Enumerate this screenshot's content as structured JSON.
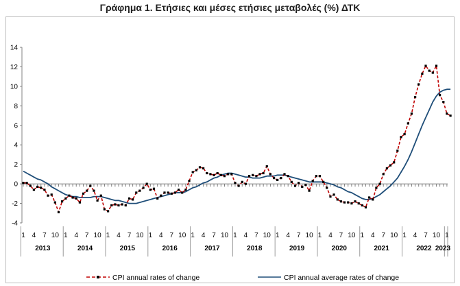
{
  "title": "Γράφημα 1. Ετήσιες και μέσες ετήσιες μεταβολές (%) ΔΤΚ",
  "colors": {
    "annual": "#c00000",
    "average": "#1f4e79",
    "axis": "#808080"
  },
  "chart_data": {
    "type": "line",
    "ylim": [
      -4,
      14
    ],
    "yticks": [
      -4,
      -2,
      0,
      2,
      4,
      6,
      8,
      10,
      12,
      14
    ],
    "grid": false,
    "legend_position": "bottom",
    "month_tick_labels": [
      "1",
      "4",
      "7",
      "10"
    ],
    "final_tick_label": "1",
    "years": [
      "2013",
      "2014",
      "2015",
      "2016",
      "2017",
      "2018",
      "2019",
      "2020",
      "2021",
      "2022",
      "2023"
    ],
    "start": "2013-01",
    "series": [
      {
        "name": "CPI annual rates of change",
        "style": "dashed-markers",
        "values": [
          0.1,
          0.1,
          -0.2,
          -0.6,
          -0.3,
          -0.4,
          -0.6,
          -1.2,
          -1.1,
          -1.9,
          -2.9,
          -1.8,
          -1.5,
          -1.2,
          -1.4,
          -1.5,
          -1.9,
          -1.0,
          -0.7,
          -0.2,
          -0.7,
          -1.7,
          -1.2,
          -2.6,
          -2.8,
          -2.2,
          -2.1,
          -2.2,
          -2.1,
          -2.2,
          -1.5,
          -1.6,
          -0.9,
          -0.7,
          -0.4,
          0.0,
          -0.6,
          -0.5,
          -1.5,
          -1.2,
          -0.9,
          -0.9,
          -1.0,
          -0.9,
          -0.6,
          -0.9,
          -0.6,
          0.3,
          1.2,
          1.4,
          1.7,
          1.6,
          1.1,
          1.0,
          0.9,
          1.1,
          0.9,
          0.8,
          1.0,
          1.0,
          0.1,
          -0.2,
          0.2,
          0.0,
          0.8,
          0.9,
          0.8,
          1.0,
          1.1,
          1.8,
          1.0,
          0.6,
          0.4,
          0.6,
          1.0,
          0.8,
          0.2,
          -0.2,
          0.1,
          -0.3,
          -0.1,
          -0.7,
          0.3,
          0.8,
          0.8,
          0.2,
          -0.4,
          -1.3,
          -1.1,
          -1.6,
          -1.8,
          -1.9,
          -1.9,
          -2.0,
          -1.8,
          -2.0,
          -2.2,
          -2.4,
          -1.4,
          -1.6,
          -0.4,
          0.0,
          1.0,
          1.6,
          1.9,
          2.2,
          3.4,
          4.8,
          5.1,
          6.2,
          7.2,
          8.9,
          10.2,
          11.3,
          12.1,
          11.6,
          11.4,
          12.1,
          9.1,
          8.4,
          7.2,
          7.0
        ]
      },
      {
        "name": "CPI annual average rates of change",
        "style": "solid",
        "values": [
          1.3,
          1.1,
          0.9,
          0.7,
          0.5,
          0.4,
          0.2,
          0.0,
          -0.3,
          -0.5,
          -0.7,
          -0.9,
          -1.1,
          -1.2,
          -1.3,
          -1.3,
          -1.4,
          -1.4,
          -1.4,
          -1.4,
          -1.3,
          -1.3,
          -1.3,
          -1.4,
          -1.5,
          -1.6,
          -1.7,
          -1.7,
          -1.8,
          -1.9,
          -2.0,
          -2.0,
          -2.0,
          -1.9,
          -1.8,
          -1.7,
          -1.6,
          -1.5,
          -1.4,
          -1.3,
          -1.2,
          -1.1,
          -1.0,
          -0.9,
          -0.9,
          -0.9,
          -0.8,
          -0.6,
          -0.4,
          -0.3,
          -0.1,
          0.1,
          0.2,
          0.4,
          0.6,
          0.7,
          0.9,
          1.0,
          1.1,
          1.1,
          1.0,
          0.9,
          0.8,
          0.7,
          0.7,
          0.6,
          0.6,
          0.6,
          0.7,
          0.8,
          0.8,
          0.8,
          0.9,
          0.9,
          0.9,
          0.8,
          0.7,
          0.6,
          0.5,
          0.4,
          0.3,
          0.2,
          0.2,
          0.2,
          0.2,
          0.2,
          0.1,
          0.0,
          -0.1,
          -0.3,
          -0.4,
          -0.6,
          -0.8,
          -0.9,
          -1.1,
          -1.3,
          -1.5,
          -1.6,
          -1.6,
          -1.5,
          -1.3,
          -1.1,
          -0.8,
          -0.5,
          -0.2,
          0.2,
          0.6,
          1.2,
          1.8,
          2.5,
          3.3,
          4.2,
          5.1,
          6.0,
          6.8,
          7.6,
          8.4,
          9.0,
          9.4,
          9.6,
          9.7,
          9.7
        ]
      }
    ]
  }
}
